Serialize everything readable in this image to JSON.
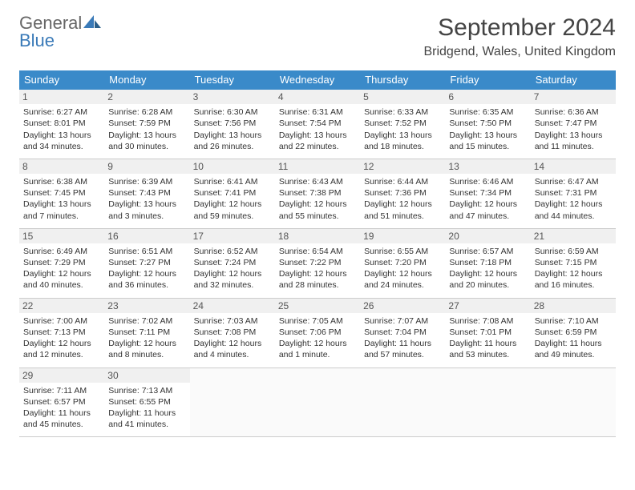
{
  "brand": {
    "word1": "General",
    "word2": "Blue"
  },
  "title": "September 2024",
  "location": "Bridgend, Wales, United Kingdom",
  "colors": {
    "header_bg": "#3a8ac9",
    "header_text": "#ffffff",
    "row_border": "#3a8ac9",
    "daynum_bg": "#f0f0f0",
    "logo_blue": "#3a7ab8",
    "text": "#333333"
  },
  "typography": {
    "title_fontsize": 30,
    "location_fontsize": 16,
    "header_fontsize": 13,
    "cell_fontsize": 10.5
  },
  "weekdays": [
    "Sunday",
    "Monday",
    "Tuesday",
    "Wednesday",
    "Thursday",
    "Friday",
    "Saturday"
  ],
  "weeks": [
    [
      {
        "num": "1",
        "sunrise": "Sunrise: 6:27 AM",
        "sunset": "Sunset: 8:01 PM",
        "day1": "Daylight: 13 hours",
        "day2": "and 34 minutes."
      },
      {
        "num": "2",
        "sunrise": "Sunrise: 6:28 AM",
        "sunset": "Sunset: 7:59 PM",
        "day1": "Daylight: 13 hours",
        "day2": "and 30 minutes."
      },
      {
        "num": "3",
        "sunrise": "Sunrise: 6:30 AM",
        "sunset": "Sunset: 7:56 PM",
        "day1": "Daylight: 13 hours",
        "day2": "and 26 minutes."
      },
      {
        "num": "4",
        "sunrise": "Sunrise: 6:31 AM",
        "sunset": "Sunset: 7:54 PM",
        "day1": "Daylight: 13 hours",
        "day2": "and 22 minutes."
      },
      {
        "num": "5",
        "sunrise": "Sunrise: 6:33 AM",
        "sunset": "Sunset: 7:52 PM",
        "day1": "Daylight: 13 hours",
        "day2": "and 18 minutes."
      },
      {
        "num": "6",
        "sunrise": "Sunrise: 6:35 AM",
        "sunset": "Sunset: 7:50 PM",
        "day1": "Daylight: 13 hours",
        "day2": "and 15 minutes."
      },
      {
        "num": "7",
        "sunrise": "Sunrise: 6:36 AM",
        "sunset": "Sunset: 7:47 PM",
        "day1": "Daylight: 13 hours",
        "day2": "and 11 minutes."
      }
    ],
    [
      {
        "num": "8",
        "sunrise": "Sunrise: 6:38 AM",
        "sunset": "Sunset: 7:45 PM",
        "day1": "Daylight: 13 hours",
        "day2": "and 7 minutes."
      },
      {
        "num": "9",
        "sunrise": "Sunrise: 6:39 AM",
        "sunset": "Sunset: 7:43 PM",
        "day1": "Daylight: 13 hours",
        "day2": "and 3 minutes."
      },
      {
        "num": "10",
        "sunrise": "Sunrise: 6:41 AM",
        "sunset": "Sunset: 7:41 PM",
        "day1": "Daylight: 12 hours",
        "day2": "and 59 minutes."
      },
      {
        "num": "11",
        "sunrise": "Sunrise: 6:43 AM",
        "sunset": "Sunset: 7:38 PM",
        "day1": "Daylight: 12 hours",
        "day2": "and 55 minutes."
      },
      {
        "num": "12",
        "sunrise": "Sunrise: 6:44 AM",
        "sunset": "Sunset: 7:36 PM",
        "day1": "Daylight: 12 hours",
        "day2": "and 51 minutes."
      },
      {
        "num": "13",
        "sunrise": "Sunrise: 6:46 AM",
        "sunset": "Sunset: 7:34 PM",
        "day1": "Daylight: 12 hours",
        "day2": "and 47 minutes."
      },
      {
        "num": "14",
        "sunrise": "Sunrise: 6:47 AM",
        "sunset": "Sunset: 7:31 PM",
        "day1": "Daylight: 12 hours",
        "day2": "and 44 minutes."
      }
    ],
    [
      {
        "num": "15",
        "sunrise": "Sunrise: 6:49 AM",
        "sunset": "Sunset: 7:29 PM",
        "day1": "Daylight: 12 hours",
        "day2": "and 40 minutes."
      },
      {
        "num": "16",
        "sunrise": "Sunrise: 6:51 AM",
        "sunset": "Sunset: 7:27 PM",
        "day1": "Daylight: 12 hours",
        "day2": "and 36 minutes."
      },
      {
        "num": "17",
        "sunrise": "Sunrise: 6:52 AM",
        "sunset": "Sunset: 7:24 PM",
        "day1": "Daylight: 12 hours",
        "day2": "and 32 minutes."
      },
      {
        "num": "18",
        "sunrise": "Sunrise: 6:54 AM",
        "sunset": "Sunset: 7:22 PM",
        "day1": "Daylight: 12 hours",
        "day2": "and 28 minutes."
      },
      {
        "num": "19",
        "sunrise": "Sunrise: 6:55 AM",
        "sunset": "Sunset: 7:20 PM",
        "day1": "Daylight: 12 hours",
        "day2": "and 24 minutes."
      },
      {
        "num": "20",
        "sunrise": "Sunrise: 6:57 AM",
        "sunset": "Sunset: 7:18 PM",
        "day1": "Daylight: 12 hours",
        "day2": "and 20 minutes."
      },
      {
        "num": "21",
        "sunrise": "Sunrise: 6:59 AM",
        "sunset": "Sunset: 7:15 PM",
        "day1": "Daylight: 12 hours",
        "day2": "and 16 minutes."
      }
    ],
    [
      {
        "num": "22",
        "sunrise": "Sunrise: 7:00 AM",
        "sunset": "Sunset: 7:13 PM",
        "day1": "Daylight: 12 hours",
        "day2": "and 12 minutes."
      },
      {
        "num": "23",
        "sunrise": "Sunrise: 7:02 AM",
        "sunset": "Sunset: 7:11 PM",
        "day1": "Daylight: 12 hours",
        "day2": "and 8 minutes."
      },
      {
        "num": "24",
        "sunrise": "Sunrise: 7:03 AM",
        "sunset": "Sunset: 7:08 PM",
        "day1": "Daylight: 12 hours",
        "day2": "and 4 minutes."
      },
      {
        "num": "25",
        "sunrise": "Sunrise: 7:05 AM",
        "sunset": "Sunset: 7:06 PM",
        "day1": "Daylight: 12 hours",
        "day2": "and 1 minute."
      },
      {
        "num": "26",
        "sunrise": "Sunrise: 7:07 AM",
        "sunset": "Sunset: 7:04 PM",
        "day1": "Daylight: 11 hours",
        "day2": "and 57 minutes."
      },
      {
        "num": "27",
        "sunrise": "Sunrise: 7:08 AM",
        "sunset": "Sunset: 7:01 PM",
        "day1": "Daylight: 11 hours",
        "day2": "and 53 minutes."
      },
      {
        "num": "28",
        "sunrise": "Sunrise: 7:10 AM",
        "sunset": "Sunset: 6:59 PM",
        "day1": "Daylight: 11 hours",
        "day2": "and 49 minutes."
      }
    ],
    [
      {
        "num": "29",
        "sunrise": "Sunrise: 7:11 AM",
        "sunset": "Sunset: 6:57 PM",
        "day1": "Daylight: 11 hours",
        "day2": "and 45 minutes."
      },
      {
        "num": "30",
        "sunrise": "Sunrise: 7:13 AM",
        "sunset": "Sunset: 6:55 PM",
        "day1": "Daylight: 11 hours",
        "day2": "and 41 minutes."
      },
      null,
      null,
      null,
      null,
      null
    ]
  ]
}
